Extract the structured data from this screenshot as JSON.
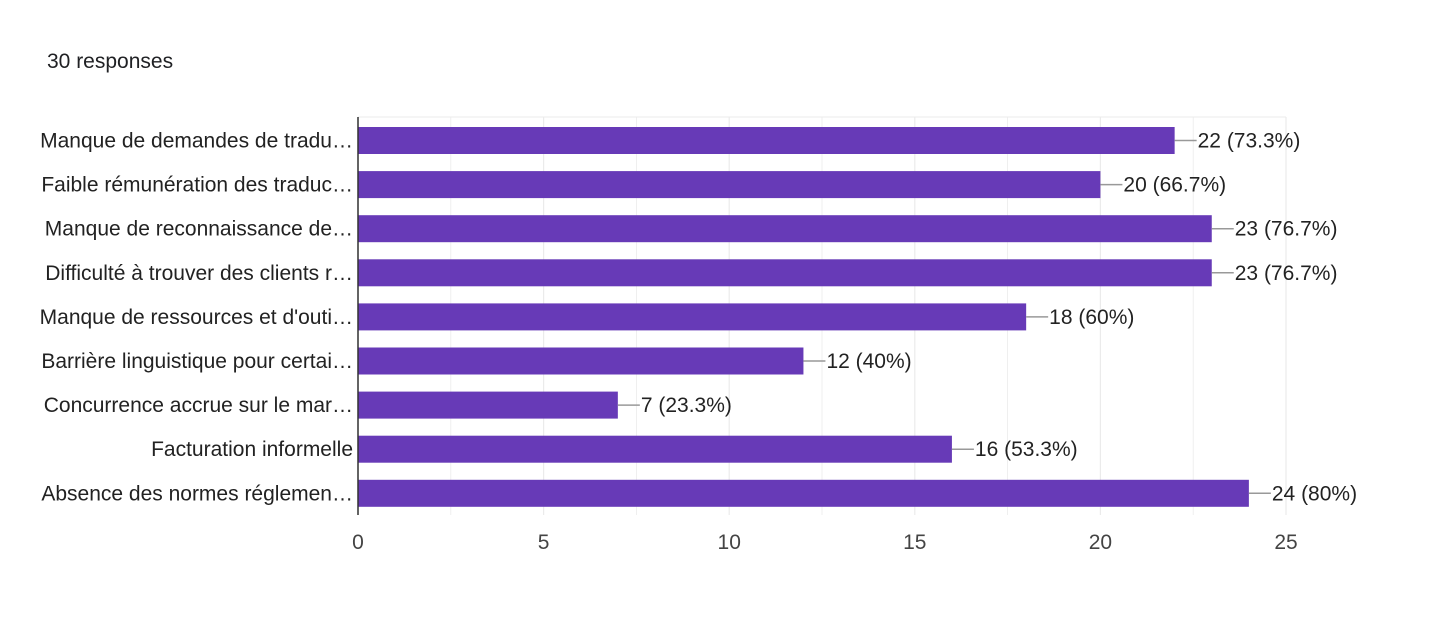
{
  "header": {
    "responses": "30 responses"
  },
  "colors": {
    "bar": "#673ab7",
    "grid": "#ebebeb",
    "axis": "#333333",
    "leader": "#999999"
  },
  "chart_data": {
    "type": "bar",
    "orientation": "horizontal",
    "categories": [
      "Manque de demandes de tradu…",
      "Faible rémunération des traduc…",
      "Manque de reconnaissance de…",
      "Difficulté à trouver des clients r…",
      "Manque de ressources et d'outi…",
      "Barrière linguistique pour certai…",
      "Concurrence accrue sur le mar…",
      "Facturation informelle",
      "Absence des normes réglemen…"
    ],
    "values": [
      22,
      20,
      23,
      23,
      18,
      12,
      7,
      16,
      24
    ],
    "value_labels": [
      "22 (73.3%)",
      "20 (66.7%)",
      "23 (76.7%)",
      "23 (76.7%)",
      "18 (60%)",
      "12 (40%)",
      "7 (23.3%)",
      "16 (53.3%)",
      "24 (80%)"
    ],
    "xlim": [
      0,
      25
    ],
    "xticks": [
      0,
      5,
      10,
      15,
      20,
      25
    ],
    "grid": true
  }
}
